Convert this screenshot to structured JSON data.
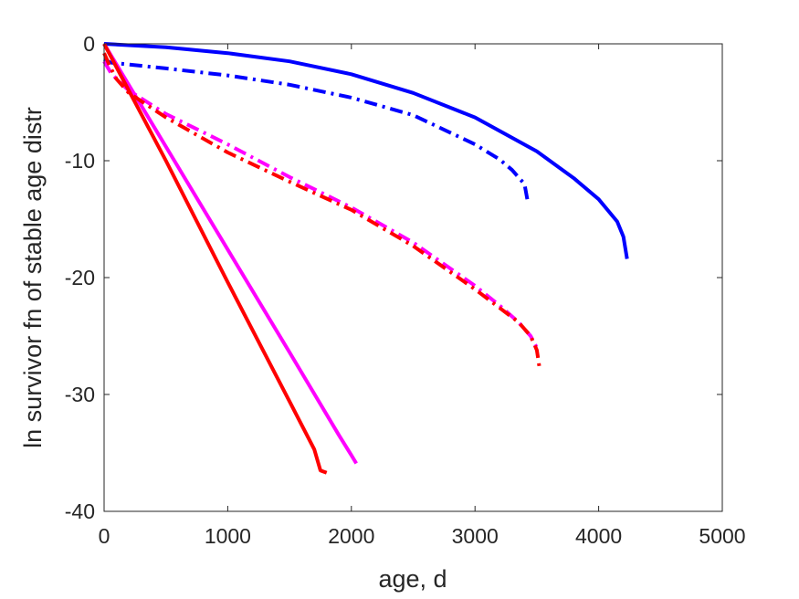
{
  "chart_data": {
    "type": "line",
    "title": "",
    "xlabel": "age, d",
    "ylabel": "ln survivor fn of stable age distr",
    "xlim": [
      0,
      5000
    ],
    "ylim": [
      -40,
      0
    ],
    "xticks": [
      0,
      1000,
      2000,
      3000,
      4000,
      5000
    ],
    "yticks": [
      0,
      -10,
      -20,
      -30,
      -40
    ],
    "xtick_labels": [
      "0",
      "1000",
      "2000",
      "3000",
      "4000",
      "5000"
    ],
    "ytick_labels": [
      "0",
      "-10",
      "-20",
      "-30",
      "-40"
    ],
    "grid": false,
    "legend": "none",
    "series": [
      {
        "color": "#0000ff",
        "style": "solid",
        "x": [
          0,
          500,
          1000,
          1500,
          2000,
          2500,
          3000,
          3500,
          3800,
          4000,
          4150,
          4200,
          4230
        ],
        "y": [
          0,
          -0.3,
          -0.8,
          -1.5,
          -2.6,
          -4.2,
          -6.3,
          -9.2,
          -11.5,
          -13.3,
          -15.2,
          -16.5,
          -18.4
        ]
      },
      {
        "color": "#0000ff",
        "style": "dashdot",
        "x": [
          0,
          50,
          500,
          1000,
          1500,
          2000,
          2500,
          3000,
          3200,
          3300,
          3400,
          3430
        ],
        "y": [
          -1.3,
          -1.6,
          -2.1,
          -2.7,
          -3.5,
          -4.6,
          -6.1,
          -8.6,
          -9.9,
          -10.8,
          -12.0,
          -13.7
        ]
      },
      {
        "color": "#ff00ff",
        "style": "solid",
        "x": [
          0,
          500,
          1000,
          1500,
          1900,
          2000,
          2040
        ],
        "y": [
          0,
          -8.8,
          -17.6,
          -26.4,
          -33.5,
          -35.2,
          -35.9
        ]
      },
      {
        "color": "#ff00ff",
        "style": "dashdot",
        "x": [
          0,
          50,
          100,
          200,
          500,
          1000,
          1500,
          2000,
          2500,
          3000,
          3200,
          3350,
          3450,
          3500
        ],
        "y": [
          -1.5,
          -2.4,
          -3.0,
          -4.0,
          -6.0,
          -8.6,
          -11.4,
          -14.0,
          -17.0,
          -20.7,
          -22.4,
          -23.8,
          -25.0,
          -26.0
        ]
      },
      {
        "color": "#ff0000",
        "style": "solid",
        "x": [
          0,
          500,
          1000,
          1500,
          1700,
          1750,
          1800
        ],
        "y": [
          0,
          -10.0,
          -20.4,
          -30.6,
          -34.7,
          -36.5,
          -36.7
        ]
      },
      {
        "color": "#ff0000",
        "style": "dashdot",
        "x": [
          0,
          50,
          100,
          200,
          500,
          1000,
          1500,
          2000,
          2500,
          3000,
          3200,
          3350,
          3450,
          3500,
          3520
        ],
        "y": [
          -0.8,
          -2.0,
          -3.0,
          -4.2,
          -6.3,
          -9.3,
          -11.8,
          -14.2,
          -17.3,
          -21.0,
          -22.6,
          -23.8,
          -25.0,
          -26.2,
          -27.6
        ]
      }
    ]
  }
}
